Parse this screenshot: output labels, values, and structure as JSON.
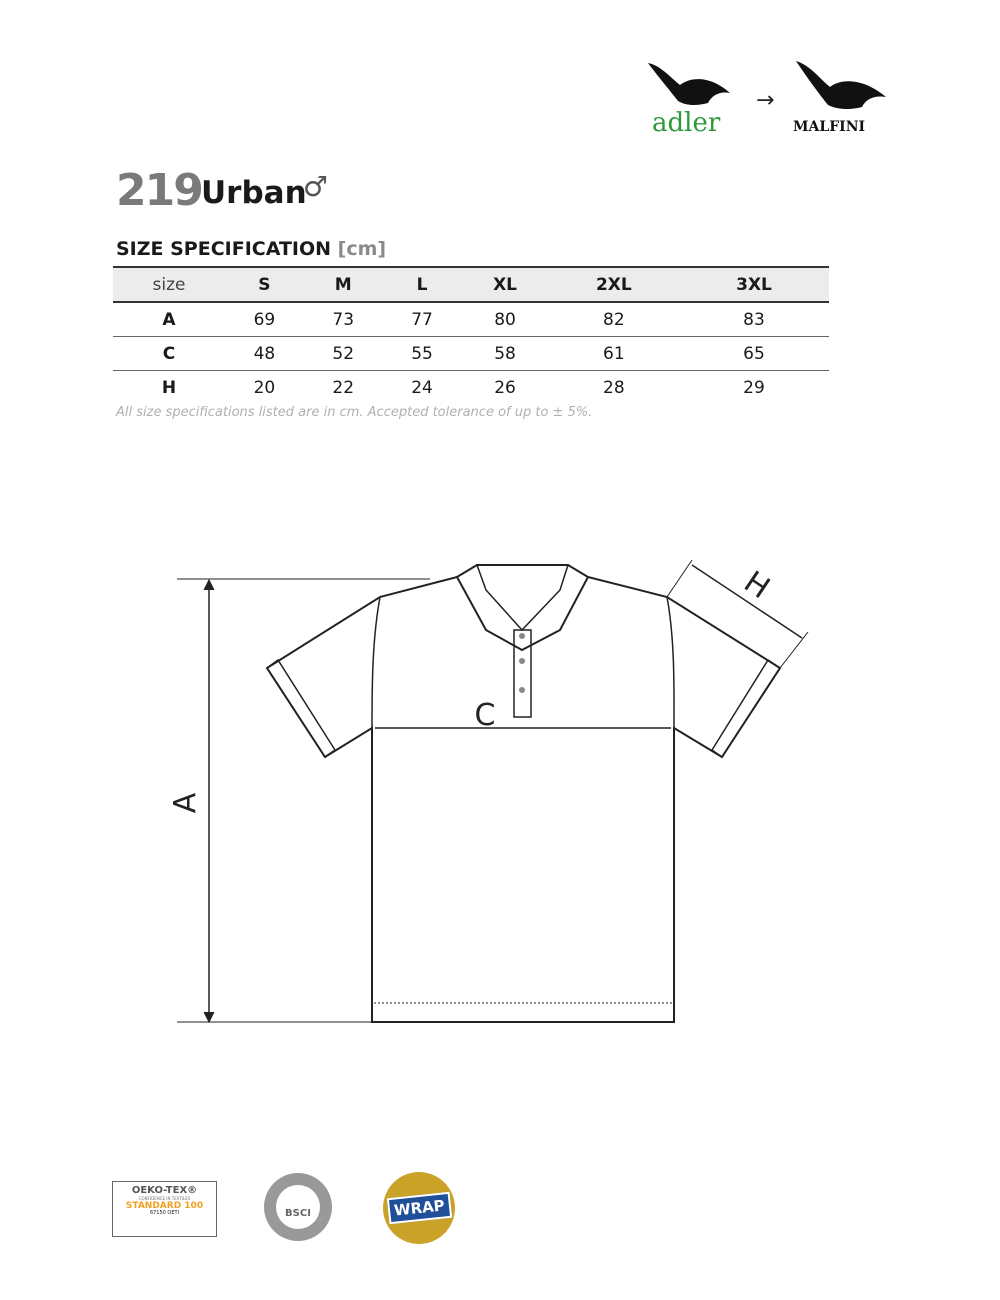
{
  "brand": {
    "old": "adler",
    "new": "MALFINI",
    "arrow": "→"
  },
  "product": {
    "number": "219",
    "name": "Urban",
    "gender_symbol": "♂"
  },
  "spec": {
    "title": "SIZE SPECIFICATION",
    "unit": "[cm]"
  },
  "table": {
    "headers": [
      "size",
      "S",
      "M",
      "L",
      "XL",
      "2XL",
      "3XL"
    ],
    "rows": [
      {
        "label": "A",
        "values": [
          "69",
          "73",
          "77",
          "80",
          "82",
          "83"
        ]
      },
      {
        "label": "C",
        "values": [
          "48",
          "52",
          "55",
          "58",
          "61",
          "65"
        ]
      },
      {
        "label": "H",
        "values": [
          "20",
          "22",
          "24",
          "26",
          "28",
          "29"
        ]
      }
    ]
  },
  "note": "All size specifications listed are in cm. Accepted tolerance of up to ± 5%.",
  "diagram": {
    "label_a": "A",
    "label_c": "C",
    "label_h": "H"
  },
  "certifications": {
    "oeko": {
      "title": "OEKO-TEX®",
      "sub": "CONFIDENCE IN TEXTILES",
      "standard": "STANDARD 100",
      "code": "67150 OETI"
    },
    "bsci": {
      "text": "BSCI"
    },
    "wrap": {
      "text": "WRAP"
    }
  },
  "colors": {
    "adler_green": "#2e9a3e",
    "title_gray": "#7a7a7a",
    "oeko_orange": "#f0a020",
    "wrap_blue": "#1f4f9a",
    "wrap_gold": "#c9a227"
  }
}
